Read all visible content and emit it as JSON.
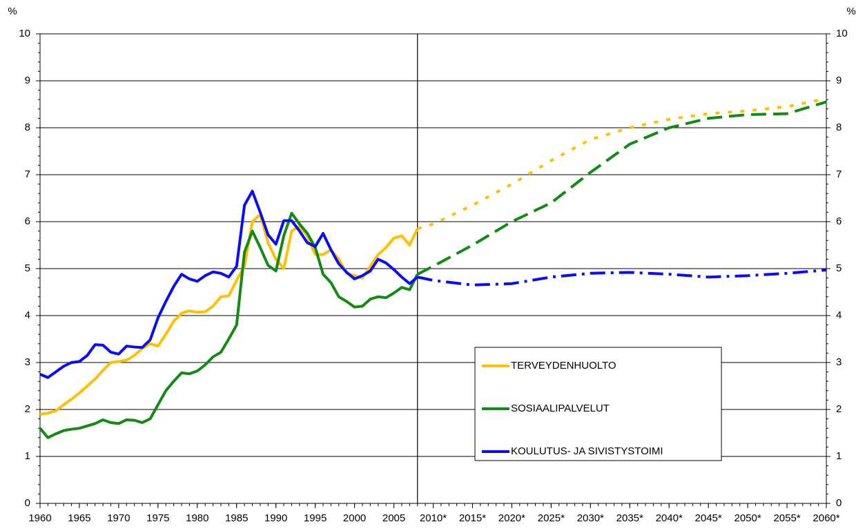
{
  "chart_data": {
    "type": "line",
    "y_label": "%",
    "y2_label": "%",
    "x": [
      1960,
      1961,
      1962,
      1963,
      1964,
      1965,
      1966,
      1967,
      1968,
      1969,
      1970,
      1971,
      1972,
      1973,
      1974,
      1975,
      1976,
      1977,
      1978,
      1979,
      1980,
      1981,
      1982,
      1983,
      1984,
      1985,
      1986,
      1987,
      1988,
      1989,
      1990,
      1991,
      1992,
      1993,
      1994,
      1995,
      1996,
      1997,
      1998,
      1999,
      2000,
      2001,
      2002,
      2003,
      2004,
      2005,
      2006,
      2007,
      2008
    ],
    "x_projection": [
      2008,
      2010,
      2015,
      2020,
      2025,
      2030,
      2035,
      2040,
      2045,
      2050,
      2055,
      2060
    ],
    "forecast_start": 2008,
    "series": [
      {
        "name": "TERVEYDENHUOLTO",
        "color": "#ffc000",
        "values": [
          1.9,
          1.92,
          1.97,
          2.1,
          2.22,
          2.35,
          2.5,
          2.65,
          2.83,
          3.0,
          3.02,
          3.05,
          3.15,
          3.3,
          3.4,
          3.35,
          3.6,
          3.88,
          4.05,
          4.1,
          4.07,
          4.08,
          4.2,
          4.4,
          4.42,
          4.75,
          5.05,
          6.0,
          6.15,
          5.55,
          5.2,
          5.0,
          5.8,
          5.9,
          5.7,
          5.3,
          5.3,
          5.4,
          5.2,
          4.9,
          4.85,
          4.8,
          5.05,
          5.3,
          5.45,
          5.65,
          5.7,
          5.5,
          5.85
        ],
        "projection": [
          5.85,
          5.95,
          6.35,
          6.8,
          7.3,
          7.75,
          8.0,
          8.18,
          8.3,
          8.36,
          8.45,
          8.62
        ]
      },
      {
        "name": "SOSIAALIPALVELUT",
        "color": "#138a13",
        "values": [
          1.6,
          1.4,
          1.48,
          1.55,
          1.58,
          1.6,
          1.65,
          1.7,
          1.78,
          1.72,
          1.7,
          1.78,
          1.77,
          1.72,
          1.8,
          2.1,
          2.4,
          2.6,
          2.78,
          2.76,
          2.82,
          2.95,
          3.12,
          3.22,
          3.5,
          3.8,
          5.35,
          5.8,
          5.45,
          5.07,
          4.95,
          5.7,
          6.18,
          5.95,
          5.75,
          5.45,
          4.88,
          4.7,
          4.4,
          4.3,
          4.18,
          4.2,
          4.35,
          4.4,
          4.38,
          4.48,
          4.6,
          4.55,
          4.88
        ],
        "projection": [
          4.88,
          5.05,
          5.5,
          6.0,
          6.4,
          7.05,
          7.65,
          8.0,
          8.2,
          8.28,
          8.3,
          8.55
        ]
      },
      {
        "name": "KOULUTUS- JA SIVISTYSTOIMI",
        "color": "#0a0aff",
        "values": [
          2.75,
          2.68,
          2.8,
          2.92,
          3.0,
          3.02,
          3.15,
          3.38,
          3.37,
          3.22,
          3.18,
          3.35,
          3.33,
          3.32,
          3.48,
          3.95,
          4.3,
          4.62,
          4.88,
          4.78,
          4.73,
          4.85,
          4.93,
          4.9,
          4.82,
          5.05,
          6.35,
          6.65,
          6.2,
          5.72,
          5.52,
          6.02,
          6.02,
          5.8,
          5.55,
          5.47,
          5.75,
          5.4,
          5.1,
          4.92,
          4.78,
          4.85,
          4.95,
          5.2,
          5.12,
          4.98,
          4.82,
          4.68,
          4.82
        ],
        "projection": [
          4.82,
          4.75,
          4.65,
          4.68,
          4.82,
          4.9,
          4.92,
          4.88,
          4.82,
          4.85,
          4.9,
          4.97
        ]
      }
    ],
    "xlim": [
      1960,
      2060
    ],
    "xticks": [
      1960,
      1965,
      1970,
      1975,
      1980,
      1985,
      1990,
      1995,
      2000,
      2005,
      {
        "value": 2010,
        "label": "2010*"
      },
      {
        "value": 2015,
        "label": "2015*"
      },
      {
        "value": 2020,
        "label": "2020*"
      },
      {
        "value": 2025,
        "label": "2025*"
      },
      {
        "value": 2030,
        "label": "2030*"
      },
      {
        "value": 2035,
        "label": "2035*"
      },
      {
        "value": 2040,
        "label": "2040*"
      },
      {
        "value": 2045,
        "label": "2045*"
      },
      {
        "value": 2050,
        "label": "2050*"
      },
      {
        "value": 2055,
        "label": "2055*"
      },
      {
        "value": 2060,
        "label": "2060*"
      }
    ],
    "ylim": [
      0,
      10
    ],
    "yticks": [
      0,
      1,
      2,
      3,
      4,
      5,
      6,
      7,
      8,
      9,
      10
    ],
    "y2lim": [
      0,
      10
    ],
    "y2ticks": [
      0,
      1,
      2,
      3,
      4,
      5,
      6,
      7,
      8,
      9,
      10
    ],
    "grid": true
  }
}
